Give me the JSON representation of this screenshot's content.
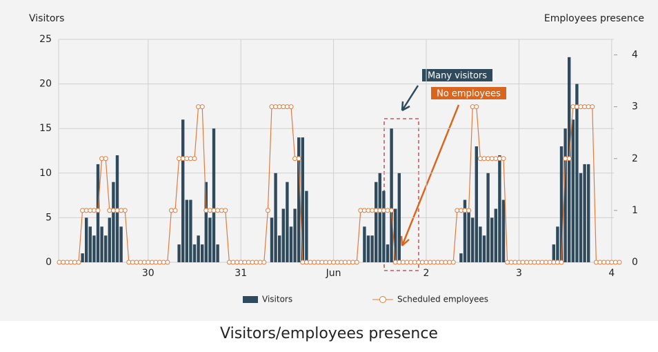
{
  "chart_data": {
    "type": "bar-line",
    "title": "Visitors/employees presence",
    "y_label": "Visitors",
    "y2_label": "Employees presence",
    "categories": [
      null,
      null,
      null,
      null,
      null,
      null,
      null,
      null,
      null,
      null,
      null,
      null,
      null,
      null,
      null,
      null,
      null,
      null,
      null,
      null,
      null,
      null,
      null,
      "30",
      null,
      null,
      null,
      null,
      null,
      null,
      null,
      null,
      null,
      null,
      null,
      null,
      null,
      null,
      null,
      null,
      null,
      null,
      null,
      null,
      null,
      null,
      null,
      "31",
      null,
      null,
      null,
      null,
      null,
      null,
      null,
      null,
      null,
      null,
      null,
      null,
      null,
      null,
      null,
      null,
      null,
      null,
      null,
      null,
      null,
      null,
      null,
      "Jun",
      null,
      null,
      null,
      null,
      null,
      null,
      null,
      null,
      null,
      null,
      null,
      null,
      null,
      null,
      null,
      null,
      null,
      null,
      null,
      null,
      null,
      null,
      null,
      "2",
      null,
      null,
      null,
      null,
      null,
      null,
      null,
      null,
      null,
      null,
      null,
      null,
      null,
      null,
      null,
      null,
      null,
      null,
      null,
      null,
      null,
      null,
      null,
      "3",
      null,
      null,
      null,
      null,
      null,
      null,
      null,
      null,
      null,
      null,
      null,
      null,
      null,
      null,
      null,
      null,
      null,
      null,
      null,
      null,
      null,
      null,
      null,
      "4",
      null,
      null
    ],
    "series": [
      {
        "name": "Visitors",
        "kind": "bar",
        "color": "#2e4a5c",
        "axis": "y",
        "values": [
          0,
          0,
          0,
          0,
          0,
          0,
          1,
          5,
          4,
          3,
          11,
          4,
          3,
          5,
          9,
          12,
          4,
          0,
          0,
          0,
          0,
          0,
          0,
          0,
          0,
          0,
          0,
          0,
          0,
          0,
          0,
          2,
          16,
          7,
          7,
          2,
          3,
          2,
          9,
          5,
          15,
          2,
          0,
          0,
          0,
          0,
          0,
          0,
          0,
          0,
          0,
          0,
          0,
          0,
          0,
          5,
          10,
          3,
          6,
          9,
          4,
          6,
          14,
          14,
          8,
          0,
          0,
          0,
          0,
          0,
          0,
          0,
          0,
          0,
          0,
          0,
          0,
          0,
          0,
          4,
          3,
          3,
          9,
          10,
          8,
          2,
          15,
          6,
          10,
          0,
          0,
          0,
          0,
          0,
          0,
          0,
          0,
          0,
          0,
          0,
          0,
          0,
          0,
          0,
          1,
          7,
          6,
          5,
          13,
          4,
          3,
          10,
          5,
          6,
          12,
          7,
          0,
          0,
          0,
          0,
          0,
          0,
          0,
          0,
          0,
          0,
          0,
          0,
          2,
          4,
          13,
          15,
          23,
          16,
          20,
          10,
          11,
          11,
          0,
          0,
          0,
          0,
          0,
          0,
          0,
          0
        ]
      },
      {
        "name": "Scheduled employees",
        "kind": "line",
        "color": "#e07b3c",
        "axis": "y2",
        "values": [
          0,
          0,
          0,
          0,
          0,
          0,
          1,
          1,
          1,
          1,
          1,
          2,
          2,
          1,
          1,
          1,
          1,
          1,
          0,
          0,
          0,
          0,
          0,
          0,
          0,
          0,
          0,
          0,
          0,
          1,
          1,
          2,
          2,
          2,
          2,
          2,
          3,
          3,
          1,
          1,
          1,
          1,
          1,
          1,
          0,
          0,
          0,
          0,
          0,
          0,
          0,
          0,
          0,
          0,
          1,
          3,
          3,
          3,
          3,
          3,
          3,
          2,
          2,
          0,
          0,
          0,
          0,
          0,
          0,
          0,
          0,
          0,
          0,
          0,
          0,
          0,
          0,
          0,
          1,
          1,
          1,
          1,
          1,
          1,
          1,
          1,
          1,
          0,
          0,
          0,
          0,
          0,
          0,
          0,
          0,
          0,
          0,
          0,
          0,
          0,
          0,
          0,
          0,
          1,
          1,
          1,
          1,
          3,
          3,
          2,
          2,
          2,
          2,
          2,
          2,
          2,
          0,
          0,
          0,
          0,
          0,
          0,
          0,
          0,
          0,
          0,
          0,
          0,
          0,
          0,
          0,
          2,
          2,
          3,
          3,
          3,
          3,
          3,
          3,
          0,
          0,
          0,
          0,
          0,
          0,
          0
        ]
      }
    ],
    "ylim": [
      0,
      25
    ],
    "yticks": [
      0,
      5,
      10,
      15,
      20,
      25
    ],
    "y2lim": [
      0,
      4.3
    ],
    "y2ticks": [
      0,
      1,
      2,
      3,
      4
    ],
    "grid": true,
    "annotations": [
      {
        "text": "Many visitors",
        "color": "#2e4a5c"
      },
      {
        "text": "No employees",
        "color": "#d9661f"
      }
    ]
  }
}
